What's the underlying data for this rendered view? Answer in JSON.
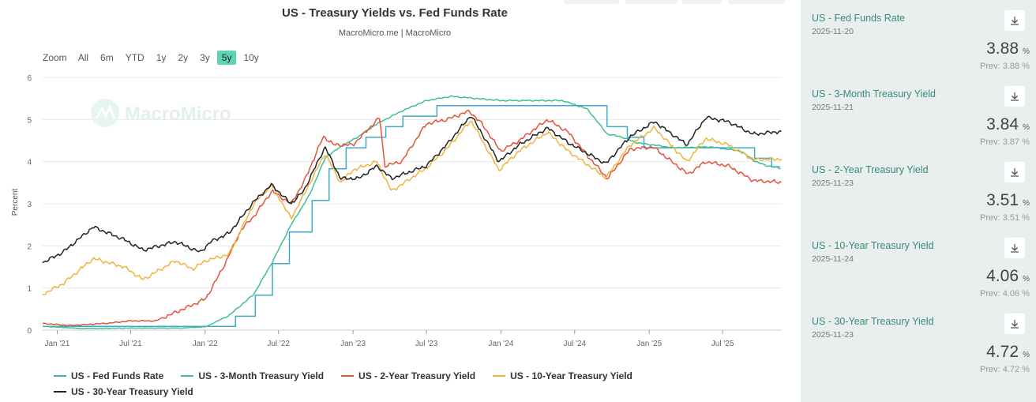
{
  "chart": {
    "title": "US - Treasury Yields vs. Fed Funds Rate",
    "subtitle": "MacroMicro.me | MacroMicro",
    "watermark": "MacroMicro",
    "zoom_label": "Zoom",
    "zoom_buttons": [
      "All",
      "6m",
      "YTD",
      "1y",
      "2y",
      "3y",
      "5y",
      "10y"
    ],
    "zoom_active": "5y"
  },
  "chart_data": {
    "type": "line",
    "ylabel": "Percent",
    "xlabel": "",
    "ylim": [
      0,
      6
    ],
    "yticks": [
      "0",
      "1",
      "2",
      "3",
      "4",
      "5",
      "6"
    ],
    "xticks": [
      "Jan '21",
      "Jul '21",
      "Jan '22",
      "Jul '22",
      "Jan '23",
      "Jul '23",
      "Jan '24",
      "Jul '24",
      "Jan '25",
      "Jul '25"
    ],
    "xtick_dates": [
      "2021-01-01",
      "2021-07-01",
      "2022-01-01",
      "2022-07-01",
      "2023-01-01",
      "2023-07-01",
      "2024-01-01",
      "2024-07-01",
      "2025-01-01",
      "2025-07-01"
    ],
    "x_range": [
      "2020-11-26",
      "2025-11-24"
    ],
    "legend_position": "bottom",
    "grid": true,
    "series": [
      {
        "name": "US - Fed Funds Rate",
        "color": "#41a9c9",
        "step": true,
        "points": [
          [
            "2020-11-26",
            0.09
          ],
          [
            "2022-03-17",
            0.33
          ],
          [
            "2022-05-05",
            0.83
          ],
          [
            "2022-06-16",
            1.58
          ],
          [
            "2022-07-28",
            2.33
          ],
          [
            "2022-09-22",
            3.08
          ],
          [
            "2022-11-03",
            3.83
          ],
          [
            "2022-12-15",
            4.33
          ],
          [
            "2023-02-02",
            4.58
          ],
          [
            "2023-03-23",
            4.83
          ],
          [
            "2023-05-04",
            5.08
          ],
          [
            "2023-07-27",
            5.33
          ],
          [
            "2024-09-19",
            4.83
          ],
          [
            "2024-11-08",
            4.58
          ],
          [
            "2024-12-19",
            4.33
          ],
          [
            "2025-09-18",
            4.08
          ],
          [
            "2025-10-30",
            3.88
          ],
          [
            "2025-11-20",
            3.88
          ]
        ]
      },
      {
        "name": "US - 3-Month Treasury Yield",
        "color": "#3fbf96",
        "points": [
          [
            "2020-11-26",
            0.09
          ],
          [
            "2021-03-01",
            0.04
          ],
          [
            "2021-07-01",
            0.05
          ],
          [
            "2021-11-01",
            0.05
          ],
          [
            "2022-01-03",
            0.08
          ],
          [
            "2022-03-01",
            0.35
          ],
          [
            "2022-05-01",
            0.85
          ],
          [
            "2022-06-15",
            1.6
          ],
          [
            "2022-08-01",
            2.5
          ],
          [
            "2022-09-15",
            3.2
          ],
          [
            "2022-10-25",
            4.1
          ],
          [
            "2022-12-01",
            4.35
          ],
          [
            "2023-01-15",
            4.6
          ],
          [
            "2023-03-01",
            4.9
          ],
          [
            "2023-05-01",
            5.2
          ],
          [
            "2023-07-01",
            5.45
          ],
          [
            "2023-09-01",
            5.55
          ],
          [
            "2023-11-01",
            5.5
          ],
          [
            "2024-01-01",
            5.45
          ],
          [
            "2024-04-01",
            5.45
          ],
          [
            "2024-06-01",
            5.45
          ],
          [
            "2024-08-01",
            5.25
          ],
          [
            "2024-09-20",
            4.65
          ],
          [
            "2024-10-20",
            4.6
          ],
          [
            "2024-12-01",
            4.45
          ],
          [
            "2025-03-01",
            4.33
          ],
          [
            "2025-06-01",
            4.35
          ],
          [
            "2025-08-15",
            4.25
          ],
          [
            "2025-09-20",
            4.0
          ],
          [
            "2025-10-20",
            3.9
          ],
          [
            "2025-11-21",
            3.84
          ]
        ]
      },
      {
        "name": "US - 2-Year Treasury Yield",
        "color": "#e2533e",
        "points": [
          [
            "2020-11-26",
            0.16
          ],
          [
            "2021-02-01",
            0.11
          ],
          [
            "2021-05-01",
            0.16
          ],
          [
            "2021-07-01",
            0.22
          ],
          [
            "2021-09-01",
            0.22
          ],
          [
            "2021-10-15",
            0.4
          ],
          [
            "2021-12-01",
            0.6
          ],
          [
            "2022-01-03",
            0.75
          ],
          [
            "2022-02-15",
            1.5
          ],
          [
            "2022-04-01",
            2.4
          ],
          [
            "2022-05-01",
            2.7
          ],
          [
            "2022-06-15",
            3.3
          ],
          [
            "2022-08-01",
            3.0
          ],
          [
            "2022-09-01",
            3.5
          ],
          [
            "2022-10-20",
            4.6
          ],
          [
            "2022-11-15",
            4.4
          ],
          [
            "2023-01-01",
            4.4
          ],
          [
            "2023-03-08",
            5.05
          ],
          [
            "2023-03-20",
            3.9
          ],
          [
            "2023-05-01",
            4.0
          ],
          [
            "2023-07-01",
            4.9
          ],
          [
            "2023-08-20",
            5.0
          ],
          [
            "2023-10-15",
            5.2
          ],
          [
            "2023-11-15",
            4.9
          ],
          [
            "2023-12-31",
            4.25
          ],
          [
            "2024-02-15",
            4.5
          ],
          [
            "2024-04-25",
            5.0
          ],
          [
            "2024-06-15",
            4.7
          ],
          [
            "2024-08-01",
            4.15
          ],
          [
            "2024-09-20",
            3.6
          ],
          [
            "2024-11-15",
            4.3
          ],
          [
            "2025-01-10",
            4.35
          ],
          [
            "2025-04-07",
            3.7
          ],
          [
            "2025-05-20",
            4.0
          ],
          [
            "2025-07-15",
            3.9
          ],
          [
            "2025-09-15",
            3.55
          ],
          [
            "2025-11-23",
            3.51
          ]
        ]
      },
      {
        "name": "US - 10-Year Treasury Yield",
        "color": "#f0b43c",
        "points": [
          [
            "2020-11-26",
            0.85
          ],
          [
            "2021-01-15",
            1.1
          ],
          [
            "2021-03-31",
            1.7
          ],
          [
            "2021-06-15",
            1.5
          ],
          [
            "2021-08-01",
            1.2
          ],
          [
            "2021-10-20",
            1.65
          ],
          [
            "2021-12-01",
            1.45
          ],
          [
            "2022-01-03",
            1.65
          ],
          [
            "2022-03-01",
            1.8
          ],
          [
            "2022-05-01",
            3.0
          ],
          [
            "2022-06-14",
            3.45
          ],
          [
            "2022-08-01",
            2.65
          ],
          [
            "2022-09-01",
            3.2
          ],
          [
            "2022-10-24",
            4.2
          ],
          [
            "2022-12-01",
            3.5
          ],
          [
            "2023-01-01",
            3.8
          ],
          [
            "2023-03-01",
            4.0
          ],
          [
            "2023-04-06",
            3.3
          ],
          [
            "2023-07-01",
            3.85
          ],
          [
            "2023-08-20",
            4.3
          ],
          [
            "2023-10-19",
            4.98
          ],
          [
            "2023-12-27",
            3.8
          ],
          [
            "2024-02-15",
            4.25
          ],
          [
            "2024-04-25",
            4.7
          ],
          [
            "2024-06-15",
            4.25
          ],
          [
            "2024-09-16",
            3.62
          ],
          [
            "2024-11-15",
            4.4
          ],
          [
            "2025-01-14",
            4.8
          ],
          [
            "2025-04-04",
            4.0
          ],
          [
            "2025-05-20",
            4.55
          ],
          [
            "2025-07-15",
            4.4
          ],
          [
            "2025-09-15",
            4.05
          ],
          [
            "2025-11-24",
            4.06
          ]
        ]
      },
      {
        "name": "US - 30-Year Treasury Yield",
        "color": "#222222",
        "points": [
          [
            "2020-11-26",
            1.6
          ],
          [
            "2021-01-15",
            1.85
          ],
          [
            "2021-03-31",
            2.45
          ],
          [
            "2021-06-15",
            2.15
          ],
          [
            "2021-08-01",
            1.9
          ],
          [
            "2021-10-20",
            2.1
          ],
          [
            "2021-12-20",
            1.85
          ],
          [
            "2022-01-15",
            2.1
          ],
          [
            "2022-03-01",
            2.3
          ],
          [
            "2022-05-01",
            3.05
          ],
          [
            "2022-06-14",
            3.45
          ],
          [
            "2022-08-01",
            3.0
          ],
          [
            "2022-09-01",
            3.3
          ],
          [
            "2022-10-24",
            4.35
          ],
          [
            "2022-12-01",
            3.6
          ],
          [
            "2023-01-15",
            3.6
          ],
          [
            "2023-03-01",
            3.9
          ],
          [
            "2023-04-06",
            3.6
          ],
          [
            "2023-07-01",
            3.9
          ],
          [
            "2023-08-20",
            4.4
          ],
          [
            "2023-10-19",
            5.1
          ],
          [
            "2023-12-27",
            4.0
          ],
          [
            "2024-02-15",
            4.4
          ],
          [
            "2024-04-25",
            4.8
          ],
          [
            "2024-06-15",
            4.45
          ],
          [
            "2024-09-16",
            3.95
          ],
          [
            "2024-11-15",
            4.6
          ],
          [
            "2025-01-14",
            4.95
          ],
          [
            "2025-04-04",
            4.4
          ],
          [
            "2025-05-21",
            5.05
          ],
          [
            "2025-07-15",
            4.95
          ],
          [
            "2025-09-15",
            4.65
          ],
          [
            "2025-11-23",
            4.72
          ]
        ]
      }
    ]
  },
  "sidebar": {
    "download_icon": "download-icon",
    "cards": [
      {
        "title": "US - Fed Funds Rate",
        "date": "2025-11-20",
        "value": "3.88",
        "unit": "%",
        "prev": "Prev: 3.88 %"
      },
      {
        "title": "US - 3-Month Treasury Yield",
        "date": "2025-11-21",
        "value": "3.84",
        "unit": "%",
        "prev": "Prev: 3.87 %"
      },
      {
        "title": "US - 2-Year Treasury Yield",
        "date": "2025-11-23",
        "value": "3.51",
        "unit": "%",
        "prev": "Prev: 3.51 %"
      },
      {
        "title": "US - 10-Year Treasury Yield",
        "date": "2025-11-24",
        "value": "4.06",
        "unit": "%",
        "prev": "Prev: 4.06 %"
      },
      {
        "title": "US - 30-Year Treasury Yield",
        "date": "2025-11-23",
        "value": "4.72",
        "unit": "%",
        "prev": "Prev: 4.72 %"
      }
    ]
  }
}
